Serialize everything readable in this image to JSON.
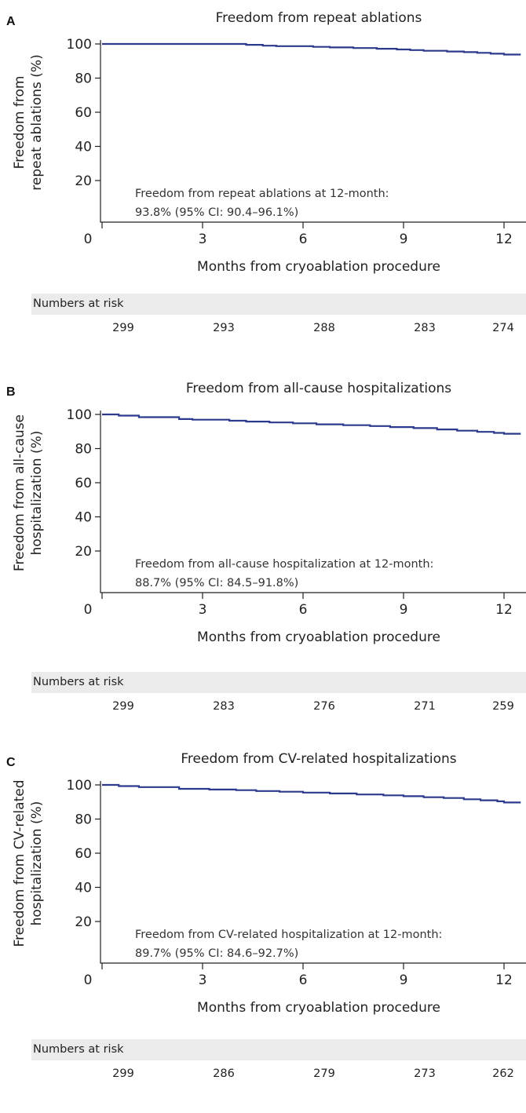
{
  "chart_data": [
    {
      "type": "line",
      "panel": "A",
      "title": "Freedom from repeat ablations",
      "ylabel_lines": [
        "Freedom from",
        "repeat ablations (%)"
      ],
      "xlabel": "Months from cryoablation procedure",
      "xticks": [
        0,
        3,
        6,
        9,
        12
      ],
      "yticks": [
        20,
        40,
        60,
        80,
        100
      ],
      "xlim": [
        0,
        12.5
      ],
      "ylim": [
        0,
        100
      ],
      "annotation": [
        "Freedom from repeat ablations at 12-month:",
        "93.8% (95% CI: 90.4–96.1%)"
      ],
      "series": [
        {
          "x": [
            0,
            3.8,
            4.3,
            4.8,
            5.2,
            6.3,
            6.8,
            7.5,
            8.2,
            8.8,
            9.2,
            9.6,
            10.3,
            10.8,
            11.2,
            11.6,
            12.0,
            12.5
          ],
          "y": [
            100,
            100,
            99.5,
            99.0,
            98.7,
            98.3,
            98.0,
            97.6,
            97.2,
            96.8,
            96.4,
            96.0,
            95.6,
            95.2,
            94.8,
            94.3,
            93.8,
            93.8
          ]
        }
      ],
      "risk_label": "Numbers at risk",
      "risk_values": [
        "299",
        "293",
        "288",
        "283",
        "274"
      ]
    },
    {
      "type": "line",
      "panel": "B",
      "title": "Freedom from all-cause hospitalizations",
      "ylabel_lines": [
        "Freedom from all-cause",
        "hospitalization (%)"
      ],
      "xlabel": "Months from cryoablation procedure",
      "xticks": [
        0,
        3,
        6,
        9,
        12
      ],
      "yticks": [
        20,
        40,
        60,
        80,
        100
      ],
      "xlim": [
        0,
        12.5
      ],
      "ylim": [
        0,
        100
      ],
      "annotation": [
        "Freedom from all-cause hospitalization at 12-month:",
        "88.7% (95% CI: 84.5–91.8%)"
      ],
      "series": [
        {
          "x": [
            0,
            0.5,
            1.1,
            2.3,
            2.7,
            3.8,
            4.3,
            5.0,
            5.7,
            6.4,
            7.2,
            8.0,
            8.6,
            9.3,
            10.0,
            10.6,
            11.2,
            11.7,
            12.0,
            12.5
          ],
          "y": [
            100,
            99.3,
            98.4,
            97.3,
            96.9,
            96.3,
            95.8,
            95.3,
            94.8,
            94.2,
            93.7,
            93.2,
            92.6,
            92.0,
            91.2,
            90.5,
            89.8,
            89.2,
            88.7,
            88.7
          ]
        }
      ],
      "risk_label": "Numbers at risk",
      "risk_values": [
        "299",
        "283",
        "276",
        "271",
        "259"
      ]
    },
    {
      "type": "line",
      "panel": "C",
      "title": "Freedom from CV-related hospitalizations",
      "ylabel_lines": [
        "Freedom from CV-related",
        "hospitalization (%)"
      ],
      "xlabel": "Months from cryoablation procedure",
      "xticks": [
        0,
        3,
        6,
        9,
        12
      ],
      "yticks": [
        20,
        40,
        60,
        80,
        100
      ],
      "xlim": [
        0,
        12.5
      ],
      "ylim": [
        0,
        100
      ],
      "annotation": [
        "Freedom from CV-related hospitalization at 12-month:",
        "89.7% (95% CI: 84.6–92.7%)"
      ],
      "series": [
        {
          "x": [
            0,
            0.5,
            1.1,
            2.3,
            3.2,
            4.0,
            4.6,
            5.3,
            6.0,
            6.8,
            7.6,
            8.4,
            9.0,
            9.6,
            10.2,
            10.8,
            11.3,
            11.8,
            12.0,
            12.5
          ],
          "y": [
            100,
            99.3,
            98.7,
            97.7,
            97.3,
            96.9,
            96.4,
            96.0,
            95.5,
            95.0,
            94.4,
            93.9,
            93.4,
            92.8,
            92.3,
            91.6,
            91.0,
            90.4,
            89.7,
            89.7
          ]
        }
      ],
      "risk_label": "Numbers at risk",
      "risk_values": [
        "299",
        "286",
        "279",
        "273",
        "262"
      ]
    }
  ],
  "colors": {
    "km_line": "#2b3a8c",
    "risk_bar": "#ebebeb"
  }
}
